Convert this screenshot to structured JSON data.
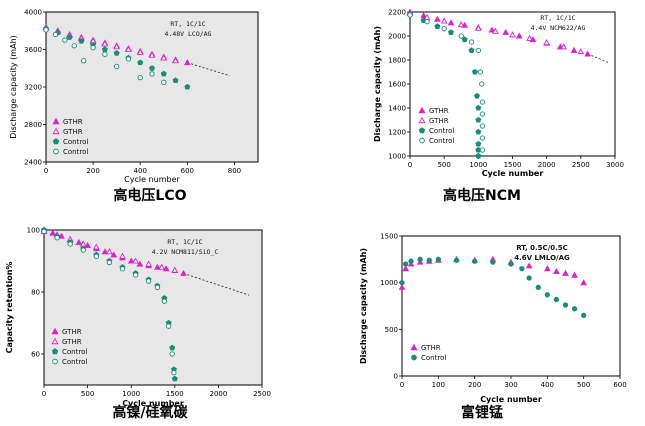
{
  "colors": {
    "gthr": "#e020d0",
    "control": "#1a8c78",
    "dash": "#222222"
  },
  "chart_data": [
    {
      "id": "lco",
      "type": "scatter",
      "caption": "高电压LCO",
      "xlabel": "Cycle number",
      "ylabel": "Discharge capacity (mAh)",
      "xlim": [
        0,
        900
      ],
      "ylim": [
        2400,
        4000
      ],
      "xticks": [
        0,
        200,
        400,
        600,
        800
      ],
      "yticks": [
        2400,
        2800,
        3200,
        3600,
        4000
      ],
      "annotations": [
        "RT, 1C/1C",
        "4.48V LCO/AG"
      ],
      "legend": [
        "GTHR",
        "GTHR",
        "Control",
        "Control"
      ],
      "series": [
        {
          "name": "GTHR",
          "marker": "triangle",
          "filled": true,
          "color": "gthr",
          "x": [
            0,
            50,
            100,
            150,
            200,
            250,
            300,
            350,
            400,
            450,
            500,
            550,
            600
          ],
          "y": [
            3840,
            3800,
            3760,
            3730,
            3700,
            3670,
            3640,
            3610,
            3580,
            3550,
            3520,
            3490,
            3460
          ]
        },
        {
          "name": "GTHR",
          "marker": "triangle",
          "filled": false,
          "color": "gthr",
          "x": [
            0,
            50,
            100,
            150,
            200,
            250,
            300,
            350,
            400,
            450,
            500,
            550
          ],
          "y": [
            3830,
            3790,
            3750,
            3720,
            3690,
            3660,
            3630,
            3600,
            3570,
            3540,
            3510,
            3480
          ]
        },
        {
          "name": "Control",
          "marker": "pentagon",
          "filled": true,
          "color": "control",
          "x": [
            0,
            50,
            100,
            150,
            200,
            250,
            300,
            350,
            400,
            450,
            500,
            550,
            600
          ],
          "y": [
            3820,
            3780,
            3730,
            3690,
            3650,
            3600,
            3560,
            3510,
            3460,
            3400,
            3340,
            3270,
            3200
          ]
        },
        {
          "name": "Control",
          "marker": "circle",
          "filled": false,
          "color": "control",
          "x": [
            0,
            40,
            80,
            120,
            160,
            200,
            250,
            300,
            350,
            400,
            450,
            500
          ],
          "y": [
            3810,
            3760,
            3700,
            3640,
            3480,
            3620,
            3550,
            3420,
            3500,
            3300,
            3340,
            3250
          ]
        }
      ],
      "trend": {
        "x": [
          600,
          780
        ],
        "y": [
          3460,
          3320
        ]
      }
    },
    {
      "id": "ncm",
      "type": "scatter",
      "caption": "高电压NCM",
      "xlabel": "Cycle number",
      "ylabel": "Discharge capacity (mAh)",
      "xlim": [
        0,
        3000
      ],
      "ylim": [
        1000,
        2200
      ],
      "xticks": [
        0,
        500,
        1000,
        1500,
        2000,
        2500,
        3000
      ],
      "yticks": [
        1000,
        1200,
        1400,
        1600,
        1800,
        2000,
        2200
      ],
      "annotations": [
        "RT, 1C/1C",
        "4.4V NCM622/AG"
      ],
      "legend": [
        "GTHR",
        "GTHR",
        "Control",
        "Control"
      ],
      "series": [
        {
          "name": "GTHR",
          "marker": "triangle",
          "filled": true,
          "color": "gthr",
          "x": [
            0,
            200,
            400,
            600,
            800,
            1000,
            1200,
            1400,
            1600,
            1800,
            2000,
            2200,
            2400,
            2600
          ],
          "y": [
            2200,
            2170,
            2140,
            2110,
            2090,
            2070,
            2050,
            2030,
            2000,
            1970,
            1940,
            1910,
            1880,
            1850
          ]
        },
        {
          "name": "GTHR",
          "marker": "triangle",
          "filled": false,
          "color": "gthr",
          "x": [
            0,
            250,
            500,
            750,
            1000,
            1250,
            1500,
            1750,
            2000,
            2250,
            2500
          ],
          "y": [
            2190,
            2155,
            2125,
            2095,
            2065,
            2040,
            2010,
            1980,
            1945,
            1910,
            1870
          ]
        },
        {
          "name": "Control",
          "marker": "pentagon",
          "filled": true,
          "color": "control",
          "x": [
            0,
            200,
            400,
            600,
            800,
            900,
            950,
            980,
            1000,
            1000,
            1000,
            1000,
            1000,
            1000
          ],
          "y": [
            2180,
            2130,
            2080,
            2030,
            1970,
            1880,
            1700,
            1500,
            1400,
            1300,
            1200,
            1100,
            1050,
            1000
          ]
        },
        {
          "name": "Control",
          "marker": "circle",
          "filled": false,
          "color": "control",
          "x": [
            0,
            250,
            500,
            750,
            900,
            1000,
            1030,
            1050,
            1060,
            1060,
            1060,
            1060,
            1060
          ],
          "y": [
            2175,
            2120,
            2060,
            2000,
            1950,
            1880,
            1700,
            1600,
            1450,
            1350,
            1250,
            1150,
            1050
          ]
        }
      ],
      "trend": {
        "x": [
          2600,
          2900
        ],
        "y": [
          1850,
          1780
        ]
      }
    },
    {
      "id": "nisi",
      "type": "scatter",
      "caption": "高镍/硅氧碳",
      "xlabel": "Cycle number",
      "ylabel": "Capacity retention%",
      "xlim": [
        0,
        2500
      ],
      "ylim": [
        50,
        100
      ],
      "xticks": [
        0,
        500,
        1000,
        1500,
        2000,
        2500
      ],
      "yticks": [
        60,
        80,
        100
      ],
      "annotations": [
        "RT, 1C/1C",
        "4.2V NCM811/SiO_C"
      ],
      "legend": [
        "GTHR",
        "GTHR",
        "Control",
        "Control"
      ],
      "series": [
        {
          "name": "GTHR",
          "marker": "triangle",
          "filled": true,
          "color": "gthr",
          "x": [
            0,
            100,
            200,
            300,
            400,
            500,
            600,
            700,
            800,
            900,
            1000,
            1100,
            1200,
            1300,
            1400,
            1500,
            1600
          ],
          "y": [
            100,
            99,
            98,
            97,
            96,
            95,
            94,
            93,
            92,
            91,
            90,
            89,
            88.5,
            88,
            87.5,
            87,
            86
          ]
        },
        {
          "name": "GTHR",
          "marker": "triangle",
          "filled": false,
          "color": "gthr",
          "x": [
            0,
            150,
            300,
            450,
            600,
            750,
            900,
            1050,
            1200,
            1350,
            1500
          ],
          "y": [
            99.5,
            98.5,
            97,
            95.5,
            94.5,
            93,
            91.5,
            90,
            89,
            88,
            87
          ]
        },
        {
          "name": "Control",
          "marker": "pentagon",
          "filled": true,
          "color": "control",
          "x": [
            0,
            150,
            300,
            450,
            600,
            750,
            900,
            1050,
            1200,
            1300,
            1380,
            1430,
            1470,
            1490,
            1500
          ],
          "y": [
            100,
            98,
            96,
            94,
            92,
            90,
            88,
            86,
            84,
            82,
            78,
            70,
            62,
            55,
            52
          ]
        },
        {
          "name": "Control",
          "marker": "circle",
          "filled": false,
          "color": "control",
          "x": [
            0,
            150,
            300,
            450,
            600,
            750,
            900,
            1050,
            1200,
            1300,
            1380,
            1430,
            1470,
            1490
          ],
          "y": [
            99.5,
            97.5,
            95.5,
            93.5,
            91.5,
            89.5,
            87.5,
            85.5,
            83.5,
            81.5,
            77,
            69,
            60,
            54
          ]
        }
      ],
      "trend": {
        "x": [
          1600,
          2350
        ],
        "y": [
          86,
          79
        ]
      }
    },
    {
      "id": "lmlo",
      "type": "scatter",
      "caption": "富锂锰",
      "xlabel": "Cycle number",
      "ylabel": "Discharge capacity (mAh)",
      "xlim": [
        0,
        600
      ],
      "ylim": [
        0,
        1500
      ],
      "xticks": [
        0,
        100,
        200,
        300,
        400,
        500,
        600
      ],
      "yticks": [
        0,
        500,
        1000,
        1500
      ],
      "annotations": [
        "RT, 0.5C/0.5C",
        "4.6V LMLO/AG"
      ],
      "legend": [
        "GTHR",
        "Control"
      ],
      "series": [
        {
          "name": "GTHR",
          "marker": "triangle",
          "filled": true,
          "color": "gthr",
          "x": [
            0,
            10,
            25,
            50,
            75,
            100,
            150,
            200,
            250,
            300,
            350,
            400,
            425,
            450,
            475,
            500
          ],
          "y": [
            950,
            1150,
            1200,
            1220,
            1230,
            1240,
            1250,
            1240,
            1250,
            1220,
            1180,
            1150,
            1120,
            1100,
            1080,
            1000
          ]
        },
        {
          "name": "Control",
          "marker": "circle",
          "filled": true,
          "color": "control",
          "x": [
            0,
            10,
            25,
            50,
            75,
            100,
            150,
            200,
            250,
            300,
            330,
            350,
            375,
            400,
            425,
            450,
            475,
            500
          ],
          "y": [
            1000,
            1200,
            1230,
            1250,
            1240,
            1250,
            1240,
            1230,
            1220,
            1200,
            1150,
            1050,
            950,
            870,
            820,
            760,
            720,
            650
          ]
        }
      ],
      "trend": null
    }
  ]
}
